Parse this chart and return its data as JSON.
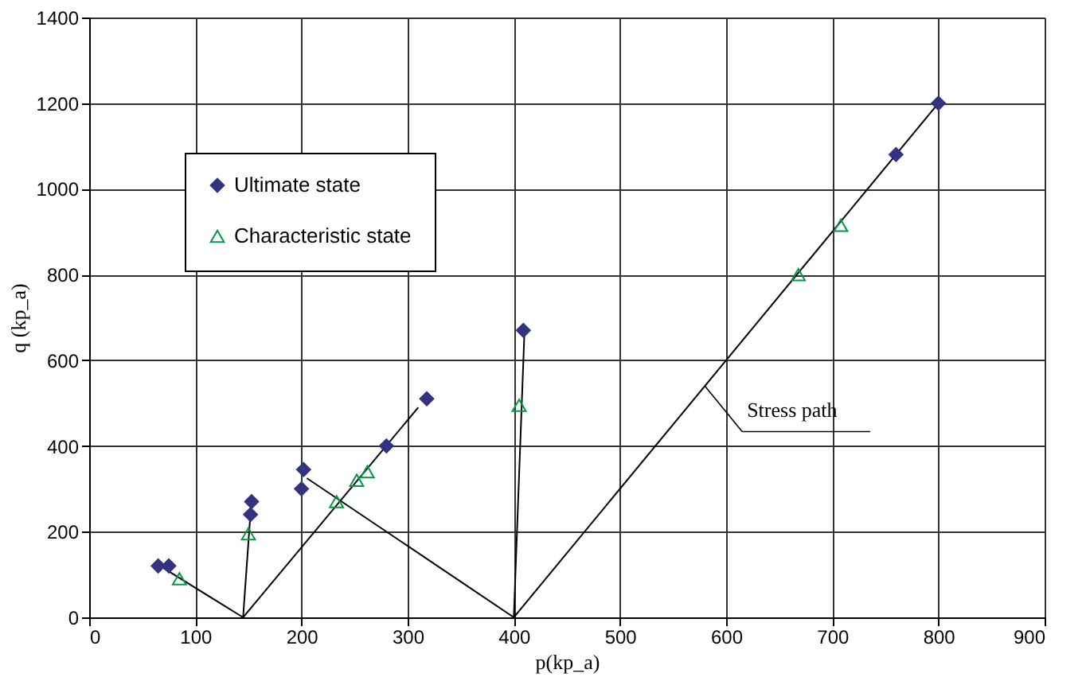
{
  "chart_data": {
    "type": "scatter",
    "xlabel": "p(kp_a)",
    "ylabel": "q (kp_a)",
    "xlim": [
      0,
      900
    ],
    "xticks": [
      0,
      100,
      200,
      300,
      400,
      500,
      600,
      700,
      800,
      900
    ],
    "ylim": [
      0,
      1400
    ],
    "yticks": [
      0,
      200,
      400,
      600,
      800,
      {
        "value": 1000,
        "label": "1000"
      },
      {
        "value": 1200,
        "label": "1200"
      },
      {
        "value": 1400,
        "label": "1400"
      }
    ],
    "grid": true,
    "legend": "top left",
    "annotations": [
      {
        "text": "Stress path",
        "x": 580,
        "y": 540
      }
    ],
    "series": [
      {
        "type": "line",
        "color": "#000000",
        "x": [
          68,
          145
        ],
        "values": [
          118,
          0
        ]
      },
      {
        "type": "line",
        "color": "#000000",
        "x": [
          145,
          152
        ],
        "values": [
          0,
          245
        ]
      },
      {
        "type": "line",
        "color": "#000000",
        "x": [
          145,
          310
        ],
        "values": [
          0,
          490
        ]
      },
      {
        "type": "line",
        "color": "#000000",
        "x": [
          205,
          400
        ],
        "values": [
          325,
          0
        ]
      },
      {
        "type": "line",
        "color": "#000000",
        "x": [
          400,
          410
        ],
        "values": [
          0,
          665
        ]
      },
      {
        "type": "line",
        "color": "#000000",
        "x": [
          400,
          800
        ],
        "values": [
          0,
          1200
        ]
      },
      {
        "name": "Ultimate state",
        "marker": "diamond",
        "color": "#333380",
        "x": [
          65,
          75,
          152,
          153,
          200,
          202,
          280,
          318,
          409,
          760,
          800
        ],
        "values": [
          120,
          120,
          240,
          270,
          300,
          345,
          400,
          510,
          670,
          1080,
          1200
        ]
      },
      {
        "name": "Characteristic state",
        "marker": "triangle",
        "color": "#009944",
        "x": [
          85,
          150,
          233,
          252,
          262,
          405,
          668,
          708
        ],
        "values": [
          90,
          195,
          270,
          320,
          340,
          495,
          800,
          915
        ]
      }
    ]
  }
}
